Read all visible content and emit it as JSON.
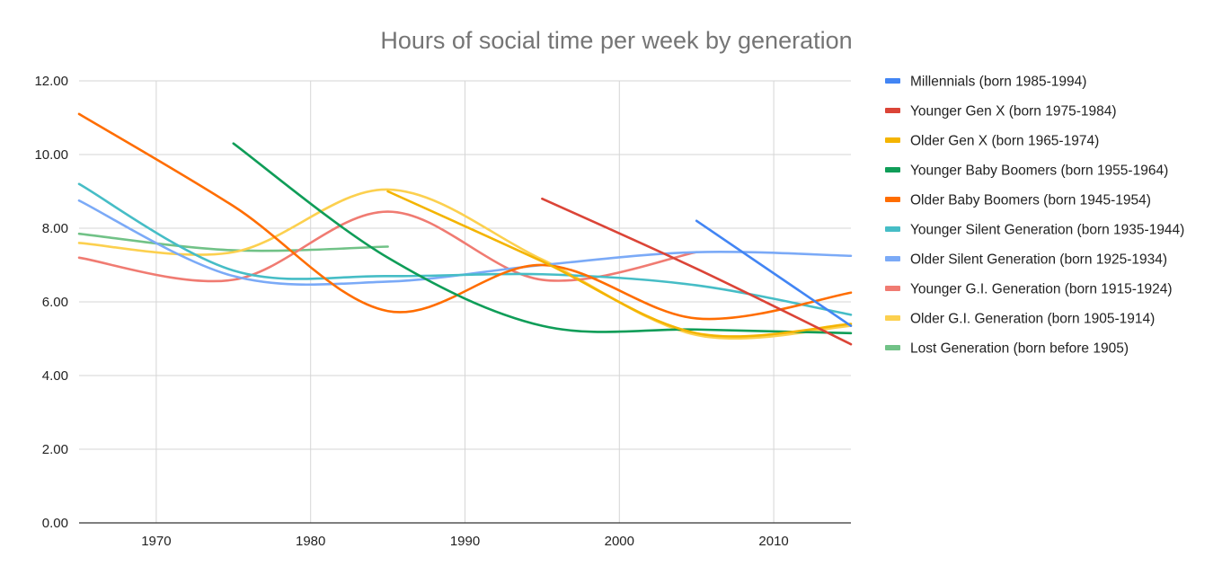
{
  "chart_data": {
    "type": "line",
    "title": "Hours of social time per week by generation",
    "xlabel": "",
    "ylabel": "",
    "xlim": [
      1965,
      2015
    ],
    "ylim": [
      0,
      12
    ],
    "x_ticks": [
      "1970",
      "1980",
      "1990",
      "2000",
      "2010"
    ],
    "y_ticks": [
      "0.00",
      "2.00",
      "4.00",
      "6.00",
      "8.00",
      "10.00",
      "12.00"
    ],
    "grid": true,
    "legend_position": "right",
    "series": [
      {
        "name": "Millennials (born 1985-1994)",
        "color": "#4285f4",
        "x": [
          2005,
          2015
        ],
        "y": [
          8.2,
          5.35
        ]
      },
      {
        "name": "Younger Gen X (born 1975-1984)",
        "color": "#db4437",
        "x": [
          1995,
          2005,
          2015
        ],
        "y": [
          8.8,
          6.9,
          4.85
        ]
      },
      {
        "name": "Older Gen X (born 1965-1974)",
        "color": "#f4b400",
        "x": [
          1985,
          1995,
          2005,
          2015
        ],
        "y": [
          9.0,
          7.1,
          5.15,
          5.4
        ]
      },
      {
        "name": "Younger Baby Boomers (born 1955-1964)",
        "color": "#0f9d58",
        "x": [
          1975,
          1985,
          1995,
          2005,
          2015
        ],
        "y": [
          10.3,
          7.2,
          5.35,
          5.25,
          5.15
        ]
      },
      {
        "name": "Older Baby Boomers (born 1945-1954)",
        "color": "#ff6d00",
        "x": [
          1965,
          1975,
          1985,
          1995,
          2005,
          2015
        ],
        "y": [
          11.1,
          8.6,
          5.75,
          7.0,
          5.55,
          6.25
        ]
      },
      {
        "name": "Younger Silent Generation (born 1935-1944)",
        "color": "#46bdc6",
        "x": [
          1965,
          1975,
          1985,
          1995,
          2005,
          2015
        ],
        "y": [
          9.2,
          6.85,
          6.7,
          6.75,
          6.45,
          5.65
        ]
      },
      {
        "name": "Older Silent Generation (born 1925-1934)",
        "color": "#7baaf7",
        "x": [
          1965,
          1975,
          1985,
          1995,
          2005,
          2015
        ],
        "y": [
          8.75,
          6.7,
          6.55,
          7.0,
          7.35,
          7.25
        ]
      },
      {
        "name": "Younger G.I. Generation (born 1915-1924)",
        "color": "#f07b72",
        "x": [
          1965,
          1975,
          1985,
          1995,
          2005
        ],
        "y": [
          7.2,
          6.6,
          8.45,
          6.6,
          7.35
        ]
      },
      {
        "name": "Older G.I. Generation (born 1905-1914)",
        "color": "#fcd04f",
        "x": [
          1965,
          1975,
          1985,
          1995,
          2005,
          2015
        ],
        "y": [
          7.6,
          7.35,
          9.05,
          7.15,
          5.1,
          5.35
        ]
      },
      {
        "name": "Lost Generation (born before 1905)",
        "color": "#71c287",
        "x": [
          1965,
          1975,
          1985
        ],
        "y": [
          7.85,
          7.4,
          7.5
        ]
      }
    ]
  }
}
